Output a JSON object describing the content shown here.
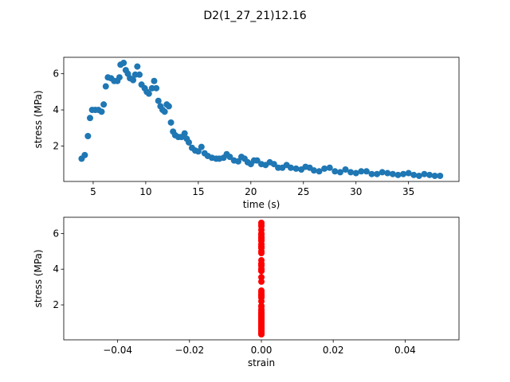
{
  "title": "D2(1_27_21)12.16",
  "chart_data": [
    {
      "type": "scatter",
      "xlabel": "time (s)",
      "ylabel": "stress (MPa)",
      "color": "#1f77b4",
      "xlim": [
        2.2,
        39.8
      ],
      "ylim": [
        0.04,
        6.91
      ],
      "xticks": [
        5,
        10,
        15,
        20,
        25,
        30,
        35
      ],
      "yticks": [
        2,
        4,
        6
      ],
      "x": [
        3.9,
        4.2,
        4.5,
        4.7,
        4.9,
        5.2,
        5.5,
        5.8,
        6.0,
        6.2,
        6.4,
        6.7,
        7.0,
        7.3,
        7.5,
        7.6,
        7.9,
        8.1,
        8.3,
        8.5,
        8.8,
        9.0,
        9.2,
        9.4,
        9.6,
        9.9,
        10.1,
        10.3,
        10.6,
        10.8,
        11.0,
        11.2,
        11.4,
        11.6,
        11.8,
        12.0,
        12.2,
        12.4,
        12.6,
        12.8,
        13.1,
        13.4,
        13.7,
        13.9,
        14.1,
        14.4,
        14.7,
        15.0,
        15.3,
        15.6,
        15.9,
        16.3,
        16.7,
        17.0,
        17.4,
        17.7,
        18.0,
        18.4,
        18.8,
        19.1,
        19.4,
        19.7,
        20.0,
        20.3,
        20.6,
        21.0,
        21.4,
        21.8,
        22.2,
        22.6,
        23.0,
        23.4,
        23.8,
        24.3,
        24.8,
        25.2,
        25.6,
        26.0,
        26.5,
        27.0,
        27.5,
        28.0,
        28.5,
        29.0,
        29.5,
        30.0,
        30.5,
        31.0,
        31.5,
        32.0,
        32.5,
        33.0,
        33.5,
        34.0,
        34.5,
        35.0,
        35.5,
        36.0,
        36.5,
        37.0,
        37.5,
        38.0
      ],
      "values": [
        1.3,
        1.5,
        2.55,
        3.55,
        4.0,
        4.0,
        4.0,
        3.9,
        4.3,
        5.3,
        5.8,
        5.75,
        5.6,
        5.6,
        5.8,
        6.5,
        6.6,
        6.2,
        6.0,
        5.75,
        5.65,
        5.95,
        6.4,
        5.95,
        5.4,
        5.2,
        5.0,
        4.9,
        5.2,
        5.6,
        5.2,
        4.5,
        4.2,
        4.0,
        3.9,
        4.3,
        4.2,
        3.3,
        2.8,
        2.6,
        2.5,
        2.5,
        2.7,
        2.4,
        2.2,
        1.9,
        1.75,
        1.7,
        1.95,
        1.6,
        1.45,
        1.35,
        1.3,
        1.3,
        1.35,
        1.55,
        1.4,
        1.2,
        1.15,
        1.4,
        1.3,
        1.1,
        1.0,
        1.2,
        1.2,
        1.0,
        0.95,
        1.1,
        1.0,
        0.8,
        0.8,
        0.95,
        0.8,
        0.75,
        0.7,
        0.85,
        0.8,
        0.65,
        0.6,
        0.75,
        0.8,
        0.6,
        0.55,
        0.7,
        0.55,
        0.5,
        0.6,
        0.6,
        0.45,
        0.45,
        0.55,
        0.5,
        0.45,
        0.4,
        0.45,
        0.5,
        0.4,
        0.35,
        0.45,
        0.4,
        0.35,
        0.35
      ]
    },
    {
      "type": "scatter",
      "xlabel": "strain",
      "ylabel": "stress (MPa)",
      "color": "#ff0000",
      "xlim": [
        -0.055,
        0.055
      ],
      "ylim": [
        0.04,
        6.91
      ],
      "xticks": [
        {
          "value": -0.04,
          "label": "−0.04"
        },
        {
          "value": -0.02,
          "label": "−0.02"
        },
        {
          "value": 0,
          "label": "0.00"
        },
        {
          "value": 0.02,
          "label": "0.02"
        },
        {
          "value": 0.04,
          "label": "0.04"
        }
      ],
      "yticks": [
        2,
        4,
        6
      ],
      "x": [
        0,
        0,
        0,
        0,
        0,
        0,
        0,
        0,
        0,
        0,
        0,
        0,
        0,
        0,
        0,
        0,
        0,
        0,
        0,
        0,
        0,
        0,
        0,
        0,
        0,
        0,
        0,
        0,
        0,
        0,
        0,
        0,
        0,
        0,
        0,
        0,
        0,
        0,
        0,
        0,
        0,
        0,
        0,
        0,
        0,
        0,
        0,
        0,
        0,
        0,
        0,
        0,
        0,
        0,
        0,
        0,
        0,
        0,
        0,
        0,
        0,
        0,
        0,
        0,
        0,
        0,
        0,
        0,
        0,
        0,
        0,
        0,
        0,
        0,
        0,
        0,
        0,
        0,
        0,
        0,
        0,
        0,
        0,
        0,
        0,
        0,
        0,
        0,
        0,
        0,
        0,
        0,
        0,
        0,
        0,
        0,
        0,
        0,
        0,
        0,
        0,
        0
      ],
      "values": [
        1.3,
        1.5,
        2.55,
        3.55,
        4.0,
        4.0,
        4.0,
        3.9,
        4.3,
        5.3,
        5.8,
        5.75,
        5.6,
        5.6,
        5.8,
        6.5,
        6.6,
        6.2,
        6.0,
        5.75,
        5.65,
        5.95,
        6.4,
        5.95,
        5.4,
        5.2,
        5.0,
        4.9,
        5.2,
        5.6,
        5.2,
        4.5,
        4.2,
        4.0,
        3.9,
        4.3,
        4.2,
        3.3,
        2.8,
        2.6,
        2.5,
        2.5,
        2.7,
        2.4,
        2.2,
        1.9,
        1.75,
        1.7,
        1.95,
        1.6,
        1.45,
        1.35,
        1.3,
        1.3,
        1.35,
        1.55,
        1.4,
        1.2,
        1.15,
        1.4,
        1.3,
        1.1,
        1.0,
        1.2,
        1.2,
        1.0,
        0.95,
        1.1,
        1.0,
        0.8,
        0.8,
        0.95,
        0.8,
        0.75,
        0.7,
        0.85,
        0.8,
        0.65,
        0.6,
        0.75,
        0.8,
        0.6,
        0.55,
        0.7,
        0.55,
        0.5,
        0.6,
        0.6,
        0.45,
        0.45,
        0.55,
        0.5,
        0.45,
        0.4,
        0.45,
        0.5,
        0.4,
        0.35,
        0.45,
        0.4,
        0.35,
        0.35
      ]
    }
  ]
}
